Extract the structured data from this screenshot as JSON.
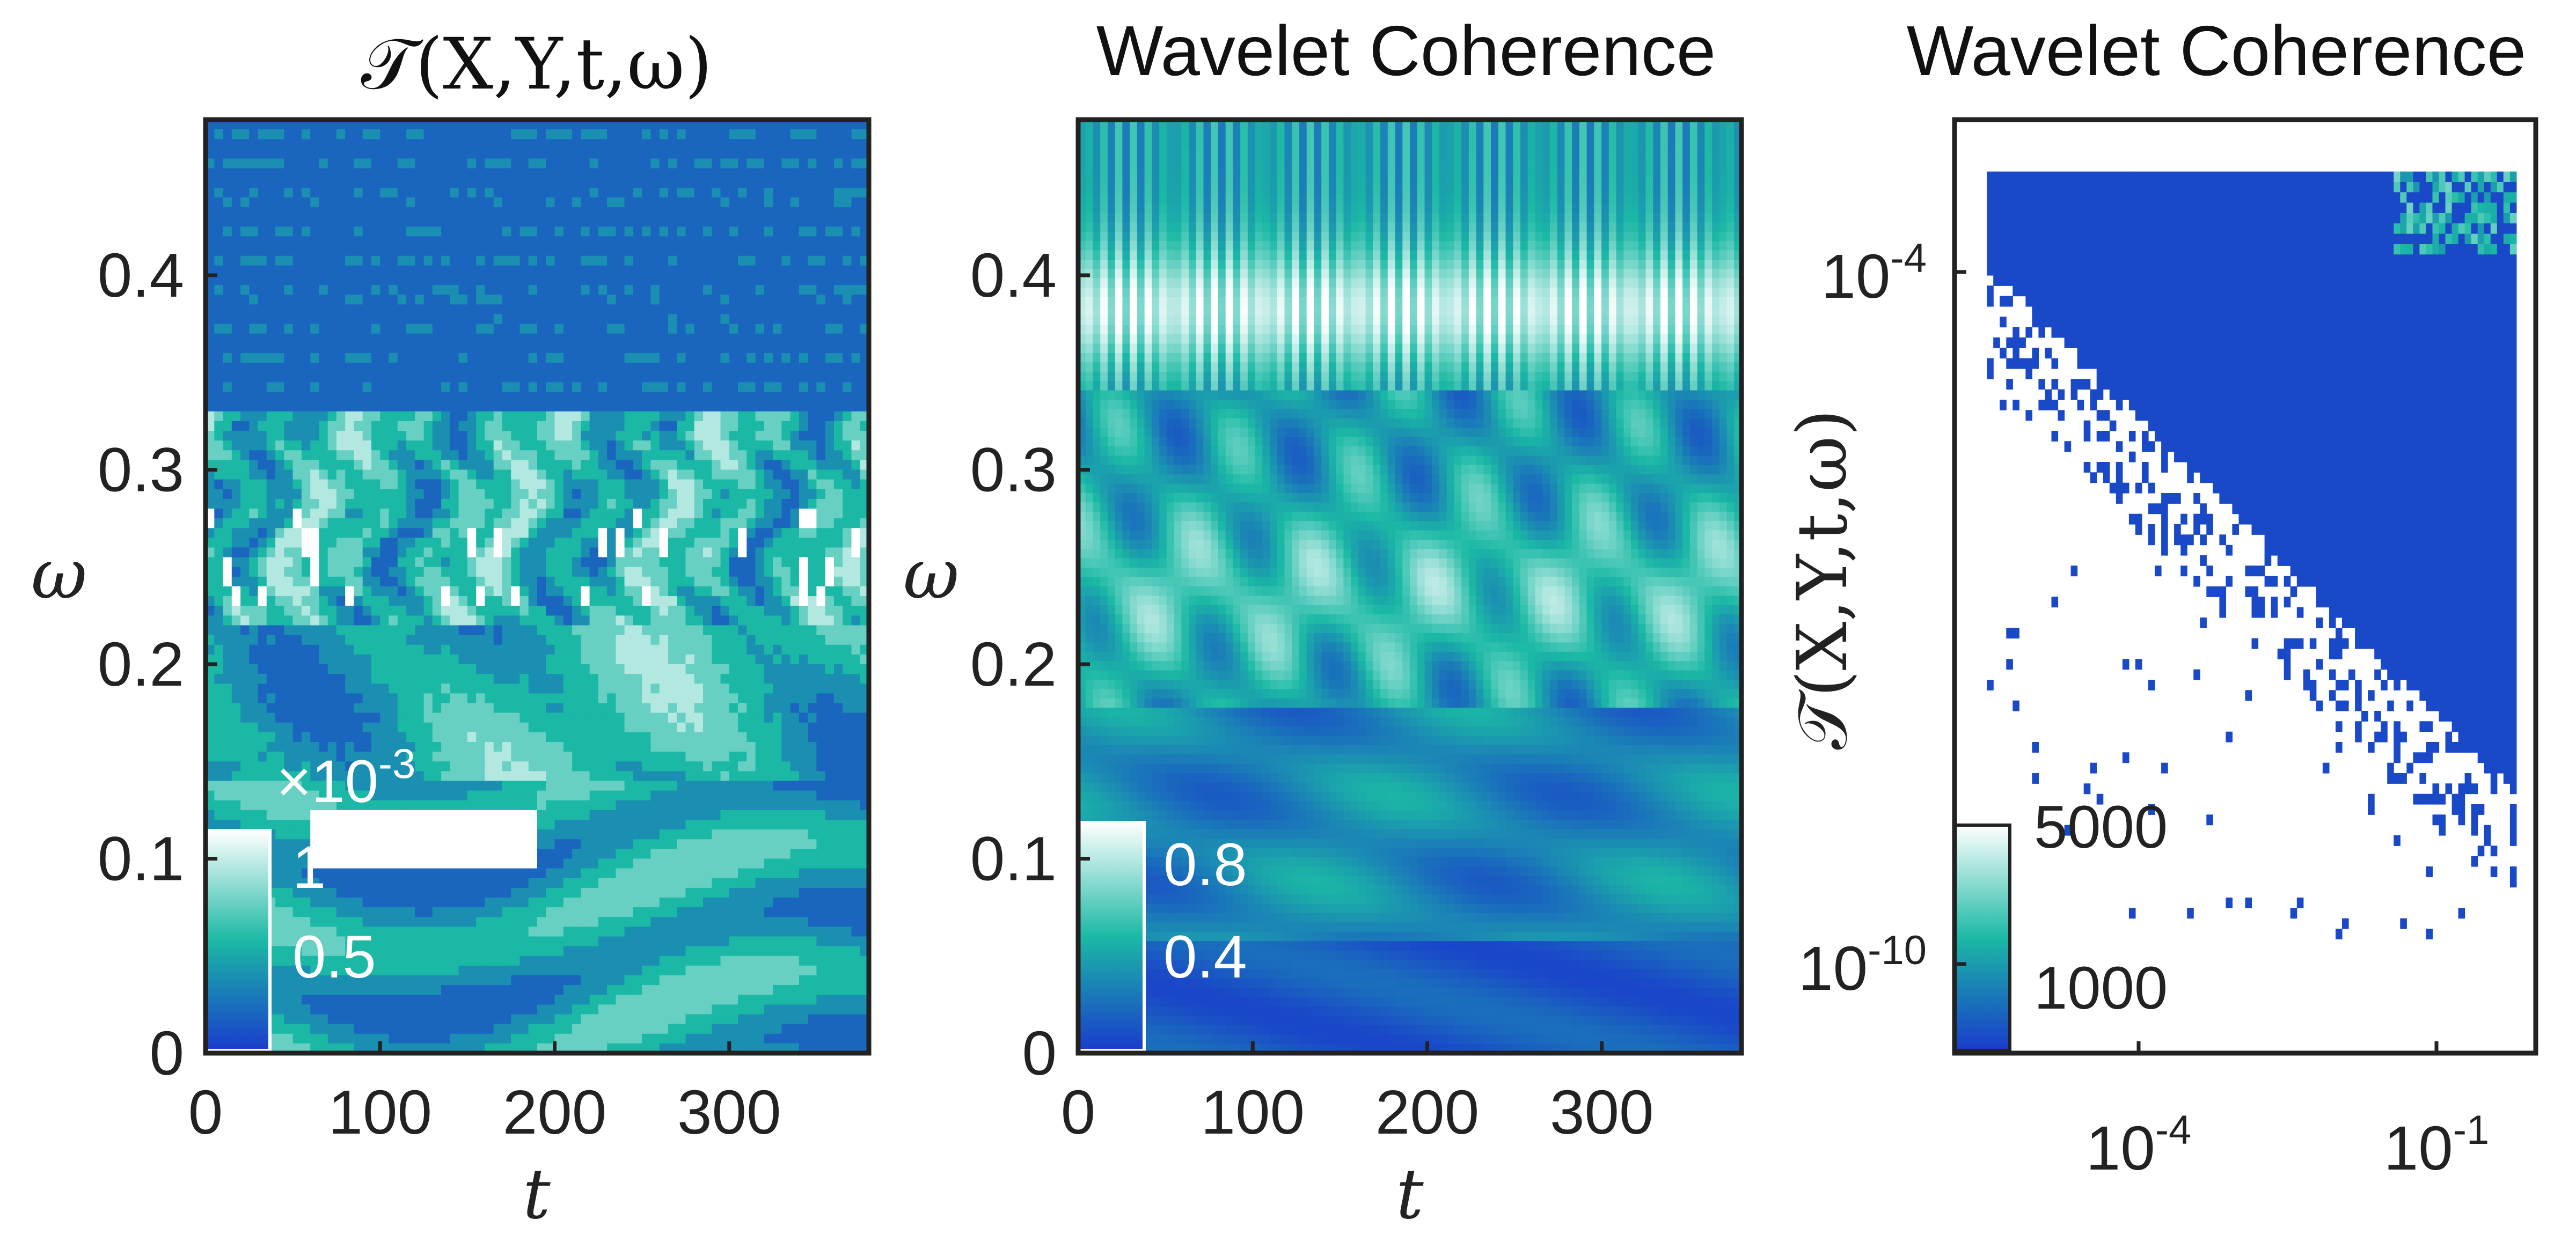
{
  "chart_data": [
    {
      "type": "heatmap",
      "title": "𝒯(X,Y,t,ω)",
      "xlabel": "t",
      "ylabel": "ω",
      "xlim": [
        0,
        380
      ],
      "ylim": [
        0,
        0.48
      ],
      "xticks": [
        0,
        100,
        200,
        300
      ],
      "xtick_labels": [
        "0",
        "100",
        "200",
        "300"
      ],
      "yticks": [
        0,
        0.1,
        0.2,
        0.3,
        0.4
      ],
      "ytick_labels": [
        "0",
        "0.1",
        "0.2",
        "0.3",
        "0.4"
      ],
      "colorbar": {
        "scale_label": "×10",
        "scale_exponent": "-3",
        "tick_labels": [
          "1",
          "0.5"
        ],
        "ticks": [
          1.0,
          0.5
        ],
        "colormap": [
          "#1a3ccc",
          "#1bb9a5",
          "#ffffff"
        ]
      }
    },
    {
      "type": "heatmap",
      "title": "Wavelet Coherence",
      "xlabel": "t",
      "ylabel": "ω",
      "xlim": [
        0,
        380
      ],
      "ylim": [
        0,
        0.48
      ],
      "xticks": [
        0,
        100,
        200,
        300
      ],
      "xtick_labels": [
        "0",
        "100",
        "200",
        "300"
      ],
      "yticks": [
        0,
        0.1,
        0.2,
        0.3,
        0.4
      ],
      "ytick_labels": [
        "0",
        "0.1",
        "0.2",
        "0.3",
        "0.4"
      ],
      "colorbar": {
        "tick_labels": [
          "0.8",
          "0.4"
        ],
        "ticks": [
          0.8,
          0.4
        ],
        "colormap": [
          "#1a3ccc",
          "#1bb9a5",
          "#ffffff"
        ]
      }
    },
    {
      "type": "heatmap",
      "title": "Wavelet Coherence",
      "title_position": "top",
      "ylabel": "𝒯(X,Y,t,ω)",
      "xscale": "log",
      "yscale": "log",
      "xtick_labels": [
        {
          "base": "10",
          "exp": "-4"
        },
        {
          "base": "10",
          "exp": "-1"
        }
      ],
      "ytick_labels": [
        {
          "base": "10",
          "exp": "-4"
        },
        {
          "base": "10",
          "exp": "-10"
        }
      ],
      "colorbar": {
        "tick_labels": [
          "5000",
          "1000"
        ],
        "ticks": [
          5000,
          1000
        ],
        "colormap": [
          "#1a3ccc",
          "#1bb9a5",
          "#ffffff"
        ]
      }
    }
  ]
}
